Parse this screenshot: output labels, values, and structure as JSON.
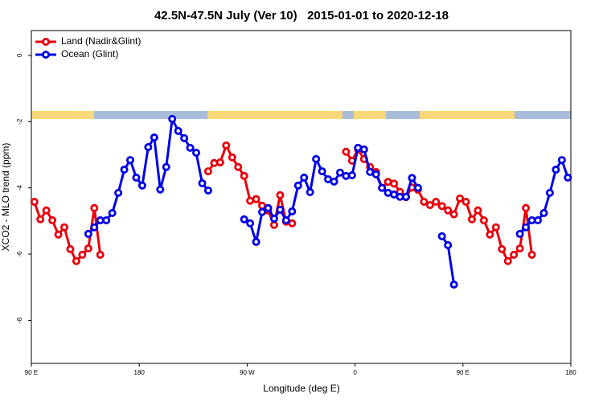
{
  "chart_data": {
    "type": "line",
    "title": "42.5N-47.5N July (Ver 10)   2015-01-01 to 2020-12-18",
    "xlabel": "Longitude (deg E)",
    "ylabel": "XCO2 - MLO trend (ppm)",
    "xlim": [
      90,
      540
    ],
    "ylim": [
      -9.3,
      0.75
    ],
    "xticks": [
      {
        "value": 90,
        "label": "90 E"
      },
      {
        "value": 180,
        "label": "180"
      },
      {
        "value": 270,
        "label": "90 W"
      },
      {
        "value": 360,
        "label": "0"
      },
      {
        "value": 450,
        "label": "90 E"
      },
      {
        "value": 540,
        "label": "180"
      }
    ],
    "yticks": [
      0,
      -2,
      -4,
      -6,
      -8
    ],
    "legend": "top-left",
    "x": [
      92.5,
      97.5,
      102.5,
      107.5,
      112.5,
      117.5,
      122.5,
      127.5,
      132.5,
      137.5,
      142.5,
      147.5,
      152.5,
      157.5,
      162.5,
      167.5,
      172.5,
      177.5,
      182.5,
      187.5,
      192.5,
      197.5,
      202.5,
      207.5,
      212.5,
      217.5,
      222.5,
      227.5,
      232.5,
      237.5,
      242.5,
      247.5,
      252.5,
      257.5,
      262.5,
      267.5,
      272.5,
      277.5,
      282.5,
      287.5,
      292.5,
      297.5,
      302.5,
      307.5,
      312.5,
      317.5,
      322.5,
      327.5,
      332.5,
      337.5,
      342.5,
      347.5,
      352.5,
      357.5,
      362.5,
      367.5,
      372.5,
      377.5,
      382.5,
      387.5,
      392.5,
      397.5,
      402.5,
      407.5,
      412.5,
      417.5,
      422.5,
      427.5,
      432.5,
      437.5,
      442.5,
      447.5,
      452.5,
      457.5,
      462.5,
      467.5,
      472.5,
      477.5,
      482.5,
      487.5,
      492.5,
      497.5,
      502.5,
      507.5,
      512.5,
      517.5,
      522.5,
      527.5,
      532.5,
      537.5
    ],
    "series": [
      {
        "name": "Land (Nadir&Glint)",
        "color": "#e8000b",
        "values": [
          -4.42,
          -4.95,
          -4.68,
          -4.98,
          -5.41,
          -5.19,
          -5.85,
          -6.21,
          -6.02,
          -5.83,
          -4.61,
          -6.02,
          null,
          null,
          null,
          null,
          null,
          null,
          null,
          null,
          null,
          null,
          null,
          null,
          null,
          null,
          null,
          null,
          null,
          -3.5,
          -3.25,
          -3.23,
          -2.72,
          -3.08,
          -3.37,
          -3.64,
          -4.39,
          -4.34,
          -4.54,
          -4.68,
          -5.12,
          -4.22,
          -5.02,
          -5.07,
          null,
          null,
          null,
          null,
          null,
          null,
          null,
          null,
          -2.91,
          -3.18,
          -2.84,
          -3.13,
          -3.37,
          -3.52,
          -4.0,
          -3.82,
          -3.87,
          -4.12,
          -4.28,
          -3.99,
          -4.06,
          -4.42,
          -4.52,
          -4.42,
          -4.55,
          -4.68,
          -4.8,
          -4.32,
          -4.42,
          -4.95,
          -4.68,
          -4.98,
          -5.41,
          -5.19,
          -5.85,
          -6.21,
          -6.02,
          -5.83,
          -4.61,
          -6.02,
          null,
          null,
          null,
          null,
          null,
          null
        ]
      },
      {
        "name": "Ocean (Glint)",
        "color": "#0000e8",
        "values": [
          null,
          null,
          null,
          null,
          null,
          null,
          null,
          null,
          null,
          -5.39,
          -5.19,
          -4.98,
          -4.98,
          -4.76,
          -4.15,
          -3.45,
          -3.16,
          -3.69,
          -3.93,
          -2.77,
          -2.48,
          -4.05,
          -3.37,
          -1.92,
          -2.28,
          -2.5,
          -2.79,
          -2.94,
          -3.86,
          -4.08,
          null,
          null,
          null,
          null,
          null,
          -4.95,
          -5.07,
          -5.63,
          -4.73,
          -4.61,
          -4.93,
          -4.66,
          -4.98,
          -4.71,
          -3.93,
          -3.69,
          -4.13,
          -3.13,
          -3.5,
          -3.74,
          -3.81,
          -3.54,
          -3.64,
          -3.62,
          -2.79,
          -2.84,
          -3.52,
          -3.59,
          -4.0,
          -4.15,
          -4.2,
          -4.27,
          -4.27,
          -3.7,
          -4.0,
          null,
          null,
          null,
          -5.46,
          -5.73,
          -6.92,
          null,
          null,
          null,
          null,
          null,
          null,
          null,
          null,
          null,
          null,
          -5.39,
          -5.19,
          -4.98,
          -4.98,
          -4.76,
          -4.15,
          -3.45,
          -3.16,
          -3.69
        ]
      }
    ]
  }
}
